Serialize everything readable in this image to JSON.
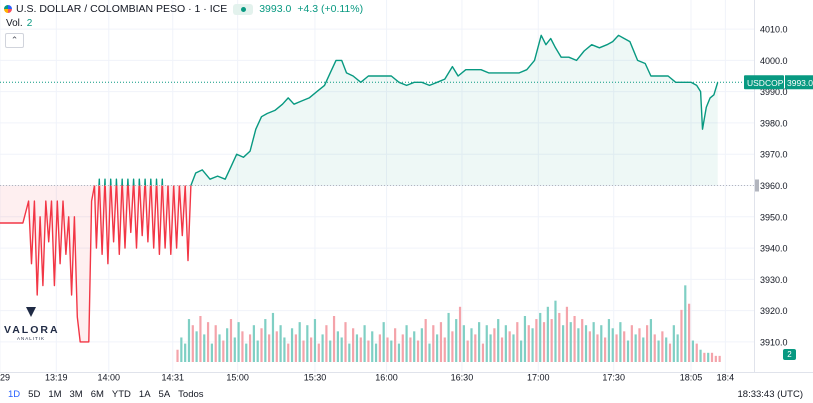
{
  "header": {
    "symbol": "U.S. DOLLAR / COLOMBIAN PESO · 1 · ICE",
    "last": "3993.0",
    "change": "+4.3 (+0.11%)",
    "volume_label": "Vol.",
    "volume_value": "2",
    "collapse_icon": "chevron-up-icon"
  },
  "price_tag": {
    "symbol": "USDCOP",
    "value": "3993.0"
  },
  "volume_badge": "2",
  "logo": {
    "word": "VALORA",
    "sub": "ANALITIK"
  },
  "footer": {
    "ranges": [
      "1D",
      "5D",
      "1M",
      "3M",
      "6M",
      "YTD",
      "1A",
      "5A",
      "Todos"
    ],
    "active_range": "1D",
    "clock": "18:33:43 (UTC)"
  },
  "colors": {
    "up": "#089981",
    "down": "#f23645",
    "up_vol": "#7fcfc4",
    "down_vol": "#f4a3aa",
    "grid": "#f0f3fa"
  },
  "chart_data": {
    "type": "line",
    "y_ticks": [
      3910.0,
      3920.0,
      3930.0,
      3940.0,
      3950.0,
      3960.0,
      3970.0,
      3980.0,
      3990.0,
      4000.0,
      4010.0
    ],
    "y_tick_labels": [
      "3910.0",
      "3920.0",
      "3930.0",
      "3940.0",
      "3950.0",
      "3960.0",
      "3970.0",
      "3980.0",
      "3990.0",
      "4000.0",
      "4010.0"
    ],
    "x_ticks": [
      {
        "label": "29",
        "t": 0
      },
      {
        "label": "13:19",
        "t": 59
      },
      {
        "label": "14:00",
        "t": 114
      },
      {
        "label": "14:31",
        "t": 181
      },
      {
        "label": "15:00",
        "t": 249
      },
      {
        "label": "15:30",
        "t": 330
      },
      {
        "label": "16:00",
        "t": 405
      },
      {
        "label": "16:30",
        "t": 484
      },
      {
        "label": "17:00",
        "t": 564
      },
      {
        "label": "17:30",
        "t": 643
      },
      {
        "label": "18:05",
        "t": 724
      },
      {
        "label": "18:4",
        "t": 760
      }
    ],
    "ylim": [
      3905.5,
      4014.5
    ],
    "tlim": [
      0,
      790
    ],
    "baseline": 3960.0,
    "last_price": 3993.0,
    "series": [
      {
        "points": [
          [
            0,
            3948
          ],
          [
            12,
            3948
          ],
          [
            24,
            3948
          ],
          [
            30,
            3955
          ],
          [
            33,
            3935
          ],
          [
            36,
            3955
          ],
          [
            39,
            3925
          ],
          [
            42,
            3950
          ],
          [
            45,
            3928
          ],
          [
            48,
            3955
          ],
          [
            51,
            3942
          ],
          [
            54,
            3955
          ],
          [
            57,
            3928
          ],
          [
            60,
            3955
          ],
          [
            63,
            3935
          ],
          [
            66,
            3955
          ],
          [
            69,
            3938
          ],
          [
            72,
            3950
          ],
          [
            75,
            3925
          ],
          [
            78,
            3950
          ],
          [
            81,
            3918
          ],
          [
            84,
            3910
          ],
          [
            93,
            3910
          ],
          [
            96,
            3955
          ],
          [
            99,
            3960
          ],
          [
            101,
            3940
          ],
          [
            104,
            3962
          ],
          [
            107,
            3938
          ],
          [
            110,
            3962
          ],
          [
            113,
            3935
          ],
          [
            116,
            3962
          ],
          [
            119,
            3942
          ],
          [
            122,
            3962
          ],
          [
            125,
            3938
          ],
          [
            128,
            3962
          ],
          [
            131,
            3940
          ],
          [
            134,
            3962
          ],
          [
            137,
            3945
          ],
          [
            140,
            3962
          ],
          [
            143,
            3940
          ],
          [
            146,
            3962
          ],
          [
            149,
            3944
          ],
          [
            152,
            3962
          ],
          [
            155,
            3942
          ],
          [
            158,
            3962
          ],
          [
            161,
            3940
          ],
          [
            164,
            3962
          ],
          [
            167,
            3938
          ],
          [
            170,
            3962
          ],
          [
            173,
            3940
          ],
          [
            176,
            3960
          ],
          [
            179,
            3938
          ],
          [
            182,
            3960
          ],
          [
            185,
            3940
          ],
          [
            188,
            3960
          ],
          [
            191,
            3944
          ],
          [
            194,
            3960
          ],
          [
            197,
            3936
          ],
          [
            200,
            3960
          ],
          [
            205,
            3964
          ],
          [
            212,
            3965
          ],
          [
            220,
            3962
          ],
          [
            228,
            3963
          ],
          [
            236,
            3962
          ],
          [
            242,
            3966
          ],
          [
            248,
            3970
          ],
          [
            255,
            3969
          ],
          [
            262,
            3971
          ],
          [
            268,
            3978
          ],
          [
            274,
            3982
          ],
          [
            280,
            3983
          ],
          [
            288,
            3984
          ],
          [
            296,
            3986
          ],
          [
            302,
            3988
          ],
          [
            308,
            3986
          ],
          [
            316,
            3987
          ],
          [
            324,
            3988
          ],
          [
            332,
            3990
          ],
          [
            340,
            3992
          ],
          [
            346,
            3996
          ],
          [
            352,
            4000
          ],
          [
            358,
            4000
          ],
          [
            363,
            3996
          ],
          [
            370,
            3995
          ],
          [
            378,
            3993
          ],
          [
            386,
            3995
          ],
          [
            394,
            3995
          ],
          [
            402,
            3995
          ],
          [
            410,
            3995
          ],
          [
            418,
            3993
          ],
          [
            426,
            3992
          ],
          [
            434,
            3993
          ],
          [
            442,
            3993
          ],
          [
            450,
            3992
          ],
          [
            458,
            3993
          ],
          [
            466,
            3994
          ],
          [
            474,
            3998
          ],
          [
            480,
            3995
          ],
          [
            488,
            3997
          ],
          [
            496,
            3997
          ],
          [
            504,
            3997
          ],
          [
            512,
            3996
          ],
          [
            520,
            3996
          ],
          [
            528,
            3996
          ],
          [
            536,
            3996
          ],
          [
            544,
            3996
          ],
          [
            552,
            3997
          ],
          [
            560,
            4000
          ],
          [
            567,
            4008
          ],
          [
            572,
            4005
          ],
          [
            577,
            4007
          ],
          [
            582,
            4004
          ],
          [
            588,
            4001
          ],
          [
            596,
            4001
          ],
          [
            604,
            4000
          ],
          [
            612,
            4003
          ],
          [
            620,
            4005
          ],
          [
            628,
            4004
          ],
          [
            636,
            4005
          ],
          [
            642,
            4006
          ],
          [
            648,
            4008
          ],
          [
            654,
            4007
          ],
          [
            660,
            4006
          ],
          [
            668,
            4000
          ],
          [
            676,
            3999
          ],
          [
            682,
            3995
          ],
          [
            690,
            3995
          ],
          [
            700,
            3995
          ],
          [
            708,
            3993
          ],
          [
            716,
            3993
          ],
          [
            724,
            3993
          ],
          [
            730,
            3992
          ],
          [
            734,
            3990
          ],
          [
            736,
            3978
          ],
          [
            740,
            3985
          ],
          [
            744,
            3988
          ],
          [
            748,
            3989
          ],
          [
            752,
            3993
          ]
        ]
      }
    ],
    "volume_ylim": [
      0,
      30
    ],
    "volume": [
      [
        186,
        4
      ],
      [
        190,
        8
      ],
      [
        194,
        6
      ],
      [
        198,
        14
      ],
      [
        202,
        12
      ],
      [
        206,
        10
      ],
      [
        210,
        15
      ],
      [
        214,
        9
      ],
      [
        218,
        13
      ],
      [
        222,
        6
      ],
      [
        226,
        12
      ],
      [
        230,
        9
      ],
      [
        234,
        7
      ],
      [
        238,
        11
      ],
      [
        242,
        14
      ],
      [
        246,
        8
      ],
      [
        250,
        13
      ],
      [
        254,
        10
      ],
      [
        258,
        6
      ],
      [
        262,
        9
      ],
      [
        266,
        12
      ],
      [
        270,
        7
      ],
      [
        274,
        11
      ],
      [
        278,
        14
      ],
      [
        282,
        9
      ],
      [
        286,
        16
      ],
      [
        290,
        10
      ],
      [
        294,
        12
      ],
      [
        298,
        8
      ],
      [
        302,
        6
      ],
      [
        306,
        11
      ],
      [
        310,
        9
      ],
      [
        314,
        13
      ],
      [
        318,
        7
      ],
      [
        322,
        12
      ],
      [
        326,
        8
      ],
      [
        330,
        14
      ],
      [
        334,
        6
      ],
      [
        338,
        9
      ],
      [
        342,
        12
      ],
      [
        346,
        7
      ],
      [
        350,
        15
      ],
      [
        354,
        10
      ],
      [
        358,
        8
      ],
      [
        362,
        13
      ],
      [
        366,
        6
      ],
      [
        370,
        11
      ],
      [
        374,
        9
      ],
      [
        378,
        8
      ],
      [
        382,
        12
      ],
      [
        386,
        7
      ],
      [
        390,
        10
      ],
      [
        394,
        6
      ],
      [
        398,
        9
      ],
      [
        402,
        13
      ],
      [
        406,
        8
      ],
      [
        410,
        7
      ],
      [
        414,
        11
      ],
      [
        418,
        6
      ],
      [
        422,
        9
      ],
      [
        426,
        12
      ],
      [
        430,
        8
      ],
      [
        434,
        10
      ],
      [
        438,
        7
      ],
      [
        442,
        11
      ],
      [
        446,
        14
      ],
      [
        450,
        6
      ],
      [
        454,
        12
      ],
      [
        458,
        9
      ],
      [
        462,
        13
      ],
      [
        466,
        8
      ],
      [
        470,
        16
      ],
      [
        474,
        10
      ],
      [
        478,
        14
      ],
      [
        482,
        18
      ],
      [
        486,
        12
      ],
      [
        490,
        7
      ],
      [
        494,
        11
      ],
      [
        498,
        9
      ],
      [
        502,
        13
      ],
      [
        506,
        6
      ],
      [
        510,
        12
      ],
      [
        514,
        9
      ],
      [
        518,
        11
      ],
      [
        522,
        14
      ],
      [
        526,
        8
      ],
      [
        530,
        12
      ],
      [
        534,
        10
      ],
      [
        538,
        9
      ],
      [
        542,
        13
      ],
      [
        546,
        7
      ],
      [
        550,
        15
      ],
      [
        554,
        12
      ],
      [
        558,
        11
      ],
      [
        562,
        14
      ],
      [
        566,
        16
      ],
      [
        570,
        13
      ],
      [
        574,
        18
      ],
      [
        578,
        14
      ],
      [
        582,
        20
      ],
      [
        586,
        16
      ],
      [
        590,
        12
      ],
      [
        594,
        18
      ],
      [
        598,
        13
      ],
      [
        602,
        15
      ],
      [
        606,
        11
      ],
      [
        610,
        14
      ],
      [
        614,
        12
      ],
      [
        618,
        10
      ],
      [
        622,
        13
      ],
      [
        626,
        9
      ],
      [
        630,
        12
      ],
      [
        634,
        8
      ],
      [
        638,
        14
      ],
      [
        642,
        11
      ],
      [
        646,
        9
      ],
      [
        650,
        13
      ],
      [
        654,
        10
      ],
      [
        658,
        7
      ],
      [
        662,
        12
      ],
      [
        666,
        9
      ],
      [
        670,
        11
      ],
      [
        674,
        8
      ],
      [
        678,
        12
      ],
      [
        682,
        14
      ],
      [
        686,
        9
      ],
      [
        690,
        7
      ],
      [
        694,
        10
      ],
      [
        698,
        8
      ],
      [
        702,
        6
      ],
      [
        706,
        12
      ],
      [
        710,
        9
      ],
      [
        714,
        17
      ],
      [
        718,
        25
      ],
      [
        722,
        19
      ],
      [
        726,
        7
      ],
      [
        730,
        6
      ],
      [
        734,
        4
      ],
      [
        738,
        3
      ],
      [
        742,
        3
      ],
      [
        746,
        3
      ],
      [
        750,
        2
      ],
      [
        754,
        2
      ]
    ],
    "volume_colors": [
      "down",
      "up",
      "up",
      "up",
      "down",
      "up",
      "down",
      "up",
      "down",
      "up",
      "down",
      "up",
      "down",
      "up",
      "down",
      "up",
      "up",
      "down",
      "up",
      "down",
      "up",
      "up",
      "down",
      "up",
      "down",
      "up",
      "down",
      "up",
      "up",
      "down",
      "up",
      "down",
      "up",
      "down",
      "up",
      "down",
      "up",
      "down",
      "up",
      "down",
      "up",
      "down",
      "up",
      "up",
      "down",
      "up",
      "down",
      "up",
      "down",
      "up",
      "down",
      "up",
      "up",
      "down",
      "up",
      "down",
      "up",
      "down",
      "up",
      "down",
      "up",
      "down",
      "up",
      "down",
      "up",
      "down",
      "up",
      "down",
      "up",
      "down",
      "down",
      "up",
      "down",
      "up",
      "down",
      "up",
      "down",
      "up",
      "down",
      "up",
      "down",
      "up",
      "up",
      "down",
      "up",
      "down",
      "up",
      "down",
      "up",
      "down",
      "up",
      "up",
      "down",
      "up",
      "down",
      "up",
      "down",
      "up",
      "down",
      "up",
      "down",
      "up",
      "down",
      "up",
      "down",
      "up",
      "down",
      "up",
      "down",
      "up",
      "down",
      "up",
      "down",
      "up",
      "up",
      "down",
      "up",
      "down",
      "up",
      "down",
      "up",
      "down",
      "up",
      "down",
      "up",
      "down",
      "up",
      "down",
      "up",
      "down",
      "up",
      "up",
      "down",
      "up",
      "down",
      "up",
      "down",
      "up",
      "down",
      "up",
      "down"
    ]
  }
}
